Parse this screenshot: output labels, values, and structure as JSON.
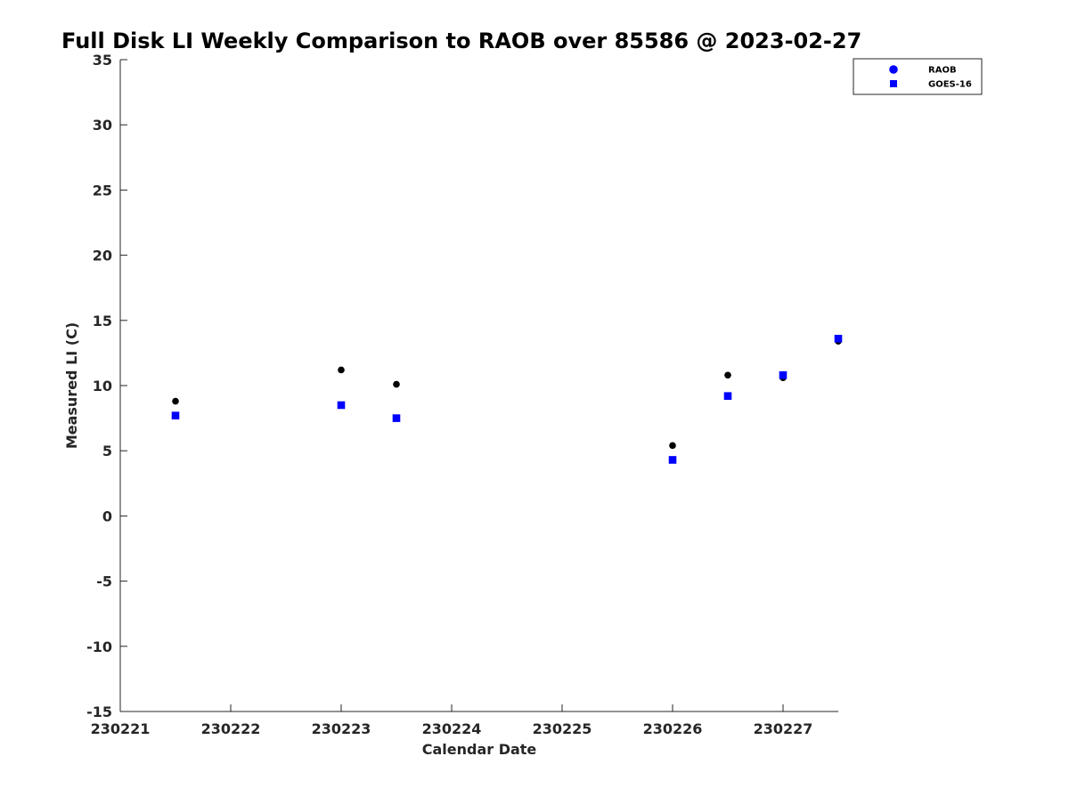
{
  "chart_data": {
    "type": "scatter",
    "title": "Full Disk LI Weekly Comparison to RAOB over 85586 @ 2023-02-27",
    "xlabel": "Calendar Date",
    "ylabel": "Measured LI (C)",
    "xlim": [
      "2023-02-21",
      "2023-02-27 12:00"
    ],
    "ylim": [
      -15,
      35
    ],
    "x_ticks": [
      "230221",
      "230222",
      "230223",
      "230224",
      "230225",
      "230226",
      "230227"
    ],
    "y_ticks": [
      35,
      30,
      25,
      20,
      15,
      10,
      5,
      0,
      -5,
      -10,
      -15
    ],
    "grid": false,
    "legend_position": "top-right",
    "series": [
      {
        "name": "RAOB",
        "marker": "circle",
        "color": "#000000",
        "legend_color": "#0000ff",
        "points": [
          {
            "x": "2023-02-21 12:00",
            "y": 8.8
          },
          {
            "x": "2023-02-23 00:00",
            "y": 11.2
          },
          {
            "x": "2023-02-23 12:00",
            "y": 10.1
          },
          {
            "x": "2023-02-26 00:00",
            "y": 5.4
          },
          {
            "x": "2023-02-26 12:00",
            "y": 10.8
          },
          {
            "x": "2023-02-27 00:00",
            "y": 10.6
          },
          {
            "x": "2023-02-27 12:00",
            "y": 13.4
          }
        ]
      },
      {
        "name": "GOES-16",
        "marker": "square",
        "color": "#0000ff",
        "legend_color": "#0000ff",
        "points": [
          {
            "x": "2023-02-21 12:00",
            "y": 7.7
          },
          {
            "x": "2023-02-23 00:00",
            "y": 8.5
          },
          {
            "x": "2023-02-23 12:00",
            "y": 7.5
          },
          {
            "x": "2023-02-26 00:00",
            "y": 4.3
          },
          {
            "x": "2023-02-26 12:00",
            "y": 9.2
          },
          {
            "x": "2023-02-27 00:00",
            "y": 10.8
          },
          {
            "x": "2023-02-27 12:00",
            "y": 13.6
          }
        ]
      }
    ]
  }
}
